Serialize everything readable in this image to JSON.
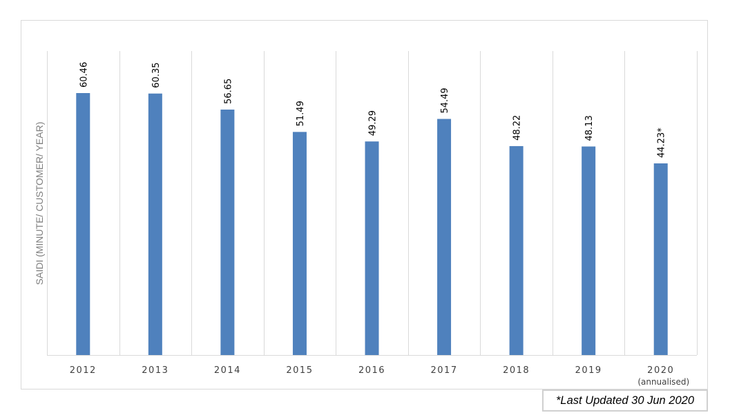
{
  "chart_data": {
    "type": "bar",
    "title": "",
    "xlabel": "",
    "ylabel": "SAIDI (MINUTE/ CUSTOMER/ YEAR)",
    "categories": [
      "2012",
      "2013",
      "2014",
      "2015",
      "2016",
      "2017",
      "2018",
      "2019",
      "2020"
    ],
    "category_sublabels": [
      "",
      "",
      "",
      "",
      "",
      "",
      "",
      "",
      "(annualised)"
    ],
    "values": [
      60.46,
      60.35,
      56.65,
      51.49,
      49.29,
      54.49,
      48.22,
      48.13,
      44.23
    ],
    "data_labels": [
      "60.46",
      "60.35",
      "56.65",
      "51.49",
      "49.29",
      "54.49",
      "48.22",
      "48.13",
      "44.23*"
    ],
    "ylim": [
      0,
      60.46
    ],
    "grid": "vertical",
    "legend": "none",
    "bar_color": "#4f81bd",
    "grid_color": "#d9d9d9"
  },
  "footnote": "*Last Updated 30 Jun 2020"
}
